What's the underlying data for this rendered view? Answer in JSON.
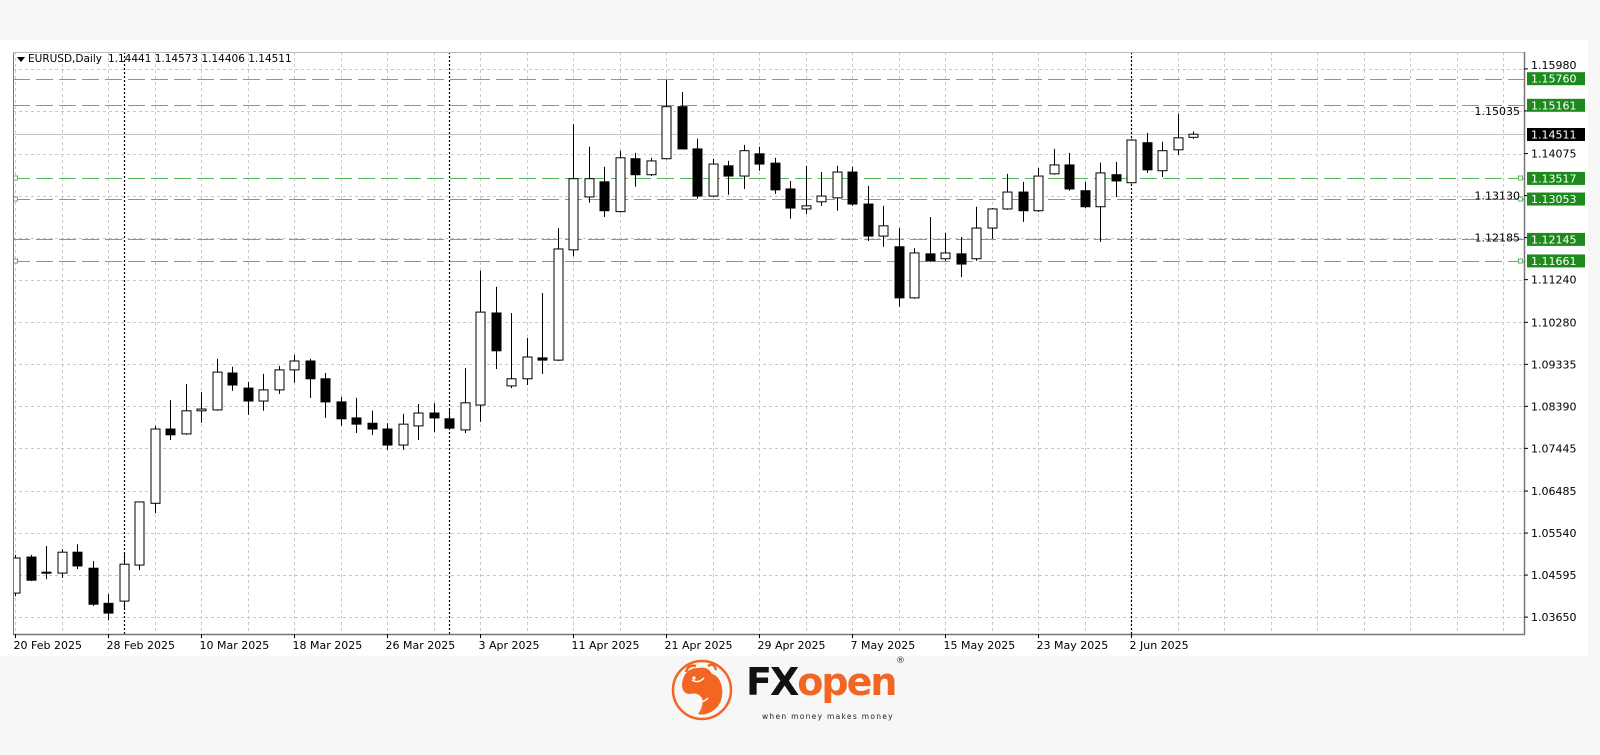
{
  "header": {
    "symbol": "EURUSD,Daily",
    "ohlc_text": "1.14441 1.14573 1.14406 1.14511"
  },
  "logo": {
    "brand_part1": "FX",
    "brand_part2": "open",
    "registered": "®",
    "tagline": "when money makes money"
  },
  "colors": {
    "bull_fill": "#ffffff",
    "bear_fill": "#000000",
    "level_line": "#5cb85c",
    "level_label_bg": "#1e8a1e",
    "price_label_bg": "#000000",
    "brand_orange": "#f26522",
    "grid": "#c8c8c8"
  },
  "chart_data": {
    "type": "candlestick",
    "title": "EURUSD,Daily",
    "symbol": "EURUSD",
    "timeframe": "Daily",
    "ylim": [
      1.0327,
      1.1636
    ],
    "grid": true,
    "y_ticks": [
      "1.15980",
      "1.15035",
      "1.14075",
      "1.13130",
      "1.12185",
      "1.11240",
      "1.10280",
      "1.09335",
      "1.08390",
      "1.07445",
      "1.06485",
      "1.05540",
      "1.04595",
      "1.03650"
    ],
    "x_tick_labels": [
      "20 Feb 2025",
      "28 Feb 2025",
      "10 Mar 2025",
      "18 Mar 2025",
      "26 Mar 2025",
      "3 Apr 2025",
      "11 Apr 2025",
      "21 Apr 2025",
      "29 Apr 2025",
      "7 May 2025",
      "15 May 2025",
      "23 May 2025",
      "2 Jun 2025"
    ],
    "candle_fields": [
      "date",
      "open",
      "high",
      "low",
      "close"
    ],
    "candles": [
      [
        "20 Feb 2025",
        1.0419,
        1.0505,
        1.0412,
        1.0498
      ],
      [
        "21 Feb 2025",
        1.05,
        1.0505,
        1.0446,
        1.0448
      ],
      [
        "24 Feb 2025",
        1.0464,
        1.0525,
        1.045,
        1.0466
      ],
      [
        "25 Feb 2025",
        1.0464,
        1.0518,
        1.0453,
        1.0511
      ],
      [
        "26 Feb 2025",
        1.0511,
        1.0529,
        1.0473,
        1.048
      ],
      [
        "27 Feb 2025",
        1.0475,
        1.0491,
        1.039,
        1.0394
      ],
      [
        "28 Feb 2025",
        1.0396,
        1.0417,
        1.0358,
        1.0374
      ],
      [
        "3 Mar 2025",
        1.0401,
        1.0507,
        1.0381,
        1.0484
      ],
      [
        "4 Mar 2025",
        1.0482,
        1.0624,
        1.0471,
        1.0624
      ],
      [
        "5 Mar 2025",
        1.0621,
        1.0795,
        1.0599,
        1.0788
      ],
      [
        "6 Mar 2025",
        1.0788,
        1.0853,
        1.0763,
        1.0775
      ],
      [
        "7 Mar 2025",
        1.0777,
        1.0889,
        1.0775,
        1.0829
      ],
      [
        "10 Mar 2025",
        1.0829,
        1.0871,
        1.0802,
        1.0833
      ],
      [
        "11 Mar 2025",
        1.0831,
        1.0946,
        1.0829,
        1.0916
      ],
      [
        "12 Mar 2025",
        1.0914,
        1.0928,
        1.0874,
        1.0887
      ],
      [
        "13 Mar 2025",
        1.088,
        1.0894,
        1.082,
        1.0851
      ],
      [
        "14 Mar 2025",
        1.0851,
        1.0912,
        1.0829,
        1.0876
      ],
      [
        "17 Mar 2025",
        1.0876,
        1.093,
        1.0867,
        1.0921
      ],
      [
        "18 Mar 2025",
        1.0921,
        1.0955,
        1.0892,
        1.0941
      ],
      [
        "19 Mar 2025",
        1.0941,
        1.0946,
        1.0858,
        1.0901
      ],
      [
        "20 Mar 2025",
        1.0901,
        1.0914,
        1.0813,
        1.0849
      ],
      [
        "21 Mar 2025",
        1.0849,
        1.086,
        1.0795,
        1.0811
      ],
      [
        "24 Mar 2025",
        1.0813,
        1.0858,
        1.0779,
        1.0799
      ],
      [
        "25 Mar 2025",
        1.0801,
        1.0829,
        1.0775,
        1.0788
      ],
      [
        "26 Mar 2025",
        1.0788,
        1.0801,
        1.0741,
        1.0752
      ],
      [
        "27 Mar 2025",
        1.0752,
        1.0822,
        1.0741,
        1.0799
      ],
      [
        "28 Mar 2025",
        1.0795,
        1.0844,
        1.0763,
        1.0824
      ],
      [
        "31 Mar 2025",
        1.0824,
        1.0846,
        1.0781,
        1.0813
      ],
      [
        "1 Apr 2025",
        1.0811,
        1.0833,
        1.0786,
        1.079
      ],
      [
        "2 Apr 2025",
        1.0786,
        1.0925,
        1.0779,
        1.0847
      ],
      [
        "3 Apr 2025",
        1.0842,
        1.1144,
        1.0804,
        1.1051
      ],
      [
        "4 Apr 2025",
        1.1049,
        1.1108,
        1.0923,
        1.0964
      ],
      [
        "7 Apr 2025",
        1.0885,
        1.1049,
        1.088,
        1.0901
      ],
      [
        "8 Apr 2025",
        1.0901,
        1.0993,
        1.0887,
        1.095
      ],
      [
        "9 Apr 2025",
        1.0948,
        1.1094,
        1.0912,
        1.0943
      ],
      [
        "10 Apr 2025",
        1.0943,
        1.124,
        1.0941,
        1.1193
      ],
      [
        "11 Apr 2025",
        1.1191,
        1.1474,
        1.1177,
        1.1351
      ],
      [
        "14 Apr 2025",
        1.131,
        1.1423,
        1.1297,
        1.1351
      ],
      [
        "15 Apr 2025",
        1.1344,
        1.1378,
        1.1265,
        1.1279
      ],
      [
        "16 Apr 2025",
        1.1277,
        1.1414,
        1.1275,
        1.1398
      ],
      [
        "17 Apr 2025",
        1.1396,
        1.1409,
        1.1333,
        1.136
      ],
      [
        "18 Apr 2025",
        1.136,
        1.1398,
        1.1357,
        1.1391
      ],
      [
        "21 Apr 2025",
        1.1396,
        1.1573,
        1.1394,
        1.1513
      ],
      [
        "22 Apr 2025",
        1.1513,
        1.1546,
        1.1418,
        1.1418
      ],
      [
        "23 Apr 2025",
        1.1418,
        1.1441,
        1.1306,
        1.1312
      ],
      [
        "24 Apr 2025",
        1.1312,
        1.1396,
        1.131,
        1.1384
      ],
      [
        "25 Apr 2025",
        1.138,
        1.1391,
        1.1315,
        1.1357
      ],
      [
        "28 Apr 2025",
        1.1357,
        1.1427,
        1.1328,
        1.1414
      ],
      [
        "29 Apr 2025",
        1.1407,
        1.1423,
        1.1369,
        1.1384
      ],
      [
        "30 Apr 2025",
        1.1386,
        1.1398,
        1.1317,
        1.1326
      ],
      [
        "1 May 2025",
        1.1328,
        1.1346,
        1.1261,
        1.1285
      ],
      [
        "2 May 2025",
        1.1283,
        1.138,
        1.1272,
        1.129
      ],
      [
        "5 May 2025",
        1.1299,
        1.1366,
        1.129,
        1.1312
      ],
      [
        "6 May 2025",
        1.1308,
        1.138,
        1.1279,
        1.1366
      ],
      [
        "7 May 2025",
        1.1366,
        1.1378,
        1.129,
        1.1294
      ],
      [
        "8 May 2025",
        1.1294,
        1.1335,
        1.1211,
        1.1222
      ],
      [
        "9 May 2025",
        1.1222,
        1.129,
        1.1198,
        1.1245
      ],
      [
        "12 May 2025",
        1.1198,
        1.124,
        1.1063,
        1.1083
      ],
      [
        "13 May 2025",
        1.1083,
        1.1195,
        1.1081,
        1.1184
      ],
      [
        "14 May 2025",
        1.1182,
        1.1265,
        1.1164,
        1.1166
      ],
      [
        "15 May 2025",
        1.1171,
        1.1229,
        1.1166,
        1.1184
      ],
      [
        "16 May 2025",
        1.1182,
        1.122,
        1.113,
        1.1159
      ],
      [
        "19 May 2025",
        1.1171,
        1.1288,
        1.1166,
        1.124
      ],
      [
        "20 May 2025",
        1.124,
        1.1285,
        1.1216,
        1.1283
      ],
      [
        "21 May 2025",
        1.1283,
        1.1362,
        1.1281,
        1.1321
      ],
      [
        "22 May 2025",
        1.1321,
        1.1344,
        1.1254,
        1.1279
      ],
      [
        "23 May 2025",
        1.1279,
        1.1375,
        1.1276,
        1.1357
      ],
      [
        "26 May 2025",
        1.1362,
        1.1418,
        1.136,
        1.1382
      ],
      [
        "27 May 2025",
        1.1382,
        1.1409,
        1.1324,
        1.1328
      ],
      [
        "28 May 2025",
        1.1324,
        1.1344,
        1.1285,
        1.1288
      ],
      [
        "29 May 2025",
        1.1288,
        1.1387,
        1.1209,
        1.1364
      ],
      [
        "30 May 2025",
        1.136,
        1.1389,
        1.131,
        1.1346
      ],
      [
        "2 Jun 2025",
        1.1342,
        1.144,
        1.134,
        1.1438
      ],
      [
        "3 Jun 2025",
        1.1432,
        1.1454,
        1.1364,
        1.1371
      ],
      [
        "4 Jun 2025",
        1.1369,
        1.1434,
        1.1355,
        1.1414
      ],
      [
        "5 Jun 2025",
        1.1416,
        1.1497,
        1.1405,
        1.1443
      ],
      [
        "6 Jun 2025",
        1.14441,
        1.14573,
        1.14406,
        1.14511
      ]
    ],
    "current_price": {
      "value": 1.14511,
      "label": "1.14511"
    },
    "horizontal_levels": [
      {
        "value": 1.1576,
        "label": "1.15760",
        "anchors": false
      },
      {
        "value": 1.15161,
        "label": "1.15161",
        "anchors": false
      },
      {
        "value": 1.13517,
        "label": "1.13517",
        "anchors": true
      },
      {
        "value": 1.13053,
        "label": "1.13053",
        "anchors": true
      },
      {
        "value": 1.12145,
        "label": "1.12145",
        "anchors": false
      },
      {
        "value": 1.11661,
        "label": "1.11661",
        "anchors": true
      }
    ],
    "vertical_markers": [
      "3 Mar 2025",
      "1 Apr 2025",
      "2 Jun 2025"
    ]
  }
}
